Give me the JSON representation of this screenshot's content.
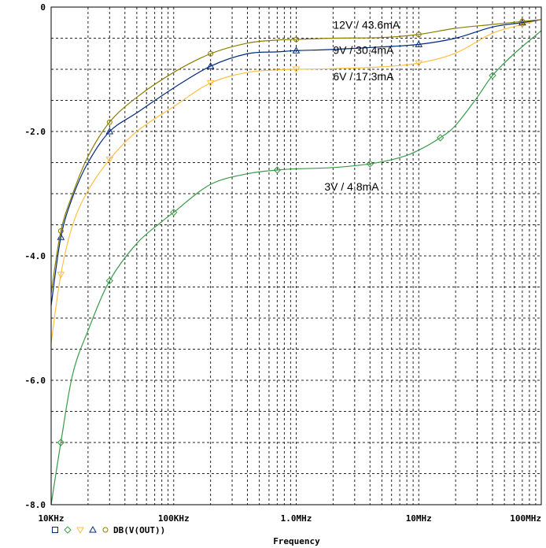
{
  "chart_data": {
    "type": "line",
    "xlabel": "Frequency",
    "x_scale": "log",
    "xlim": [
      10000,
      100000000
    ],
    "ylim": [
      -8.0,
      0
    ],
    "x_ticks": [
      {
        "value": 10000,
        "label": "10KHz"
      },
      {
        "value": 100000,
        "label": "100KHz"
      },
      {
        "value": 1000000,
        "label": "1.0MHz"
      },
      {
        "value": 10000000,
        "label": "10MHz"
      },
      {
        "value": 100000000,
        "label": "100MHz"
      }
    ],
    "y_ticks": [
      {
        "value": 0,
        "label": "0"
      },
      {
        "value": -2.0,
        "label": "-2.0"
      },
      {
        "value": -4.0,
        "label": "-4.0"
      },
      {
        "value": -6.0,
        "label": "-6.0"
      },
      {
        "value": -8.0,
        "label": "-8.0"
      }
    ],
    "grid": true,
    "legend": {
      "label": "DB(V(OUT))",
      "markers": [
        "square",
        "diamond",
        "triangle-down",
        "triangle-up",
        "circle"
      ],
      "placement": "bottom-left"
    },
    "series": [
      {
        "name": "12V / 43.6mA",
        "color": "#8b7d00",
        "marker": "circle",
        "x": [
          10000,
          12000,
          15000,
          20000,
          30000,
          50000,
          100000,
          200000,
          400000,
          700000,
          1000000,
          2000000,
          5000000,
          10000000,
          20000000,
          40000000,
          70000000,
          100000000
        ],
        "y": [
          -4.6,
          -3.6,
          -3.0,
          -2.4,
          -1.85,
          -1.45,
          -1.05,
          -0.75,
          -0.58,
          -0.53,
          -0.52,
          -0.5,
          -0.49,
          -0.44,
          -0.34,
          -0.28,
          -0.23,
          -0.2
        ]
      },
      {
        "name": "9V / 30.4mA",
        "color": "#002a80",
        "marker": "triangle-up",
        "x": [
          10000,
          12000,
          15000,
          20000,
          30000,
          50000,
          100000,
          200000,
          400000,
          700000,
          1000000,
          2000000,
          5000000,
          10000000,
          20000000,
          40000000,
          70000000,
          100000000
        ],
        "y": [
          -4.8,
          -3.7,
          -3.05,
          -2.5,
          -2.0,
          -1.7,
          -1.3,
          -0.95,
          -0.75,
          -0.72,
          -0.7,
          -0.68,
          -0.64,
          -0.6,
          -0.5,
          -0.32,
          -0.25,
          -0.2
        ]
      },
      {
        "name": "6V / 17.3mA",
        "color": "#ffc040",
        "marker": "triangle-down",
        "x": [
          10000,
          12000,
          15000,
          20000,
          30000,
          50000,
          100000,
          200000,
          400000,
          700000,
          1000000,
          2000000,
          5000000,
          10000000,
          20000000,
          40000000,
          70000000,
          100000000
        ],
        "y": [
          -5.4,
          -4.3,
          -3.5,
          -2.95,
          -2.45,
          -2.0,
          -1.6,
          -1.22,
          -1.05,
          -1.01,
          -1.0,
          -0.99,
          -0.96,
          -0.9,
          -0.74,
          -0.42,
          -0.28,
          -0.2
        ]
      },
      {
        "name": "3V / 4.8mA",
        "color": "#3a9a4a",
        "marker": "diamond",
        "x": [
          10000,
          12000,
          15000,
          20000,
          30000,
          50000,
          80000,
          100000,
          200000,
          400000,
          700000,
          1000000,
          2000000,
          4000000,
          7000000,
          10000000,
          15000000,
          20000000,
          30000000,
          40000000,
          60000000,
          100000000
        ],
        "y": [
          -8.0,
          -7.0,
          -5.9,
          -5.2,
          -4.4,
          -3.8,
          -3.45,
          -3.3,
          -2.85,
          -2.68,
          -2.62,
          -2.6,
          -2.58,
          -2.52,
          -2.42,
          -2.3,
          -2.1,
          -1.9,
          -1.45,
          -1.1,
          -0.75,
          -0.38
        ]
      }
    ],
    "annotations": [
      {
        "text": "12V / 43.6mA",
        "x": 2000000,
        "y": -0.35
      },
      {
        "text": "9V / 30.4mA",
        "x": 2000000,
        "y": -0.75
      },
      {
        "text": "6V / 17.3mA",
        "x": 2000000,
        "y": -1.18
      },
      {
        "text": "3V / 4.8mA",
        "x": 1700000,
        "y": -2.95
      }
    ]
  }
}
